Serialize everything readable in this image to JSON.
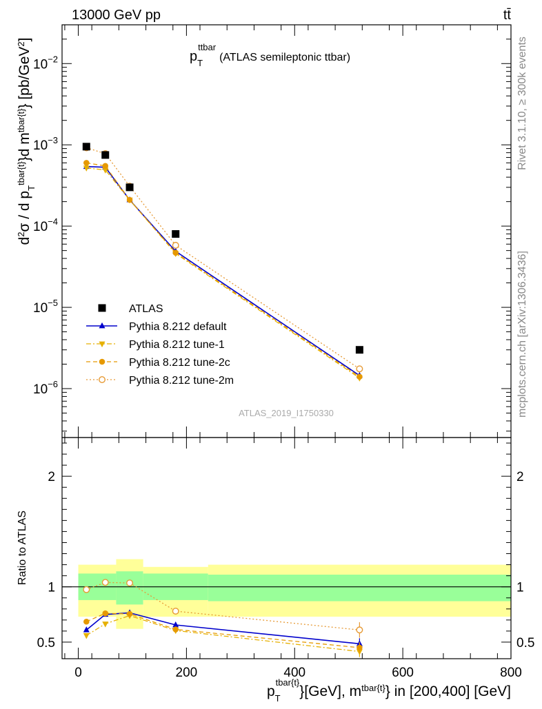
{
  "chart_data": [
    {
      "type": "scatter",
      "panel": "main",
      "title": "p_T^{ttbar} (ATLAS semileptonic ttbar)",
      "title_main": "p",
      "title_sub": "T",
      "title_sup": "ttbar",
      "title_rest": "(ATLAS semileptonic ttbar)",
      "header_left": "13000 GeV pp",
      "header_right": "tt̄",
      "side_label_top": "Rivet 3.1.10, ≥ 300k events",
      "side_label_bottom": "mcplots.cern.ch [arXiv:1306.3436]",
      "watermark": "ATLAS_2019_I1750330",
      "ylabel": "d²σ / d p_T^{tbar{t}}d m^{tbar{t}} [pb/GeV²]",
      "ylabel_parts": {
        "a": "d",
        "a_sup": "2",
        "b": "σ / d p",
        "b_sub": "T",
        "b_sup": "tbar{t}",
        "c": "}d m",
        "c_sup": "tbar{t}",
        "d": "} [pb/GeV",
        "d_sup": "2",
        "e": "]"
      },
      "yscale": "log",
      "ylim": [
        2.5e-07,
        0.03
      ],
      "xlim": [
        -30,
        800
      ],
      "y_ticks": [
        {
          "value": 1e-06,
          "base": "10",
          "exp": "−6"
        },
        {
          "value": 1e-05,
          "base": "10",
          "exp": "−5"
        },
        {
          "value": 0.0001,
          "base": "10",
          "exp": "−4"
        },
        {
          "value": 0.001,
          "base": "10",
          "exp": "−3"
        },
        {
          "value": 0.01,
          "base": "10",
          "exp": "−2"
        }
      ],
      "legend_position": "middle-left",
      "series": [
        {
          "name": "ATLAS",
          "color": "#000000",
          "marker": "square",
          "line": "none",
          "x": [
            15,
            50,
            95,
            180,
            520
          ],
          "y": [
            0.00095,
            0.00075,
            0.0003,
            8e-05,
            3e-06
          ]
        },
        {
          "name": "Pythia 8.212 default",
          "color": "#0000cc",
          "marker": "triangle-up",
          "line": "solid",
          "x": [
            15,
            50,
            95,
            180,
            520
          ],
          "y": [
            0.00054,
            0.00053,
            0.00021,
            4.9e-05,
            1.45e-06
          ]
        },
        {
          "name": "Pythia 8.212 tune-1",
          "color": "#e6b000",
          "marker": "triangle-down",
          "line": "dash-dot",
          "x": [
            15,
            50,
            95,
            180,
            520
          ],
          "y": [
            0.00052,
            0.00049,
            0.00021,
            4.6e-05,
            1.35e-06
          ]
        },
        {
          "name": "Pythia 8.212 tune-2c",
          "color": "#e69900",
          "marker": "circle",
          "line": "dashed",
          "x": [
            15,
            50,
            95,
            180,
            520
          ],
          "y": [
            0.0006,
            0.00055,
            0.00021,
            4.7e-05,
            1.4e-06
          ]
        },
        {
          "name": "Pythia 8.212 tune-2m",
          "color": "#e69933",
          "marker": "open-circle",
          "line": "dotted",
          "x": [
            15,
            50,
            95,
            180,
            520
          ],
          "y": [
            0.00092,
            0.00078,
            0.00031,
            5.8e-05,
            1.75e-06
          ]
        }
      ]
    },
    {
      "type": "scatter",
      "panel": "ratio",
      "ylabel": "Ratio to ATLAS",
      "xlabel": "p_T^{tbar{t}}[GeV], m^{tbar{t}} in [200,400] [GeV]",
      "xlabel_parts": {
        "a": "p",
        "a_sub": "T",
        "a_sup": "tbar{t}",
        "b": "}[GeV], m",
        "b_sup": "tbar{t}",
        "c": "} in [200,400] [GeV]"
      },
      "ylim": [
        0.35,
        2.35
      ],
      "xlim": [
        -30,
        800
      ],
      "y_ticks": [
        0.5,
        1,
        2
      ],
      "y_tick_labels": [
        "0.5",
        "1",
        "2"
      ],
      "x_ticks": [
        0,
        200,
        400,
        600,
        800
      ],
      "x_tick_labels": [
        "0",
        "200",
        "400",
        "600",
        "800"
      ],
      "bands": [
        {
          "x0": 0,
          "x1": 70,
          "inner": [
            0.88,
            1.12
          ],
          "outer": [
            0.73,
            1.2
          ]
        },
        {
          "x0": 70,
          "x1": 120,
          "inner": [
            0.84,
            1.14
          ],
          "outer": [
            0.62,
            1.25
          ]
        },
        {
          "x0": 120,
          "x1": 240,
          "inner": [
            0.88,
            1.12
          ],
          "outer": [
            0.73,
            1.18
          ]
        },
        {
          "x0": 240,
          "x1": 800,
          "inner": [
            0.87,
            1.11
          ],
          "outer": [
            0.73,
            1.2
          ]
        }
      ],
      "band_colors": {
        "inner": "#99ff99",
        "outer": "#ffff99"
      },
      "series": [
        {
          "name": "Pythia 8.212 default",
          "color": "#0000cc",
          "marker": "triangle-up",
          "line": "solid",
          "x": [
            15,
            50,
            95,
            180,
            520
          ],
          "y": [
            0.61,
            0.75,
            0.765,
            0.655,
            0.485
          ],
          "err": [
            0.01,
            0.01,
            0.015,
            0.025,
            0.05
          ]
        },
        {
          "name": "Pythia 8.212 tune-1",
          "color": "#e6b000",
          "marker": "triangle-down",
          "line": "dash-dot",
          "x": [
            15,
            50,
            95,
            180,
            520
          ],
          "y": [
            0.56,
            0.665,
            0.74,
            0.605,
            0.415
          ],
          "err": [
            0.01,
            0.01,
            0.015,
            0.025,
            0.05
          ]
        },
        {
          "name": "Pythia 8.212 tune-2c",
          "color": "#e69900",
          "marker": "circle",
          "line": "dashed",
          "x": [
            15,
            50,
            95,
            180,
            520
          ],
          "y": [
            0.685,
            0.76,
            0.755,
            0.615,
            0.45
          ],
          "err": [
            0.01,
            0.01,
            0.015,
            0.025,
            0.05
          ]
        },
        {
          "name": "Pythia 8.212 tune-2m",
          "color": "#e69933",
          "marker": "open-circle",
          "line": "dotted",
          "x": [
            15,
            50,
            95,
            180,
            520
          ],
          "y": [
            0.975,
            1.04,
            1.035,
            0.78,
            0.61
          ],
          "err": [
            0.01,
            0.01,
            0.015,
            0.025,
            0.07
          ]
        }
      ]
    }
  ]
}
